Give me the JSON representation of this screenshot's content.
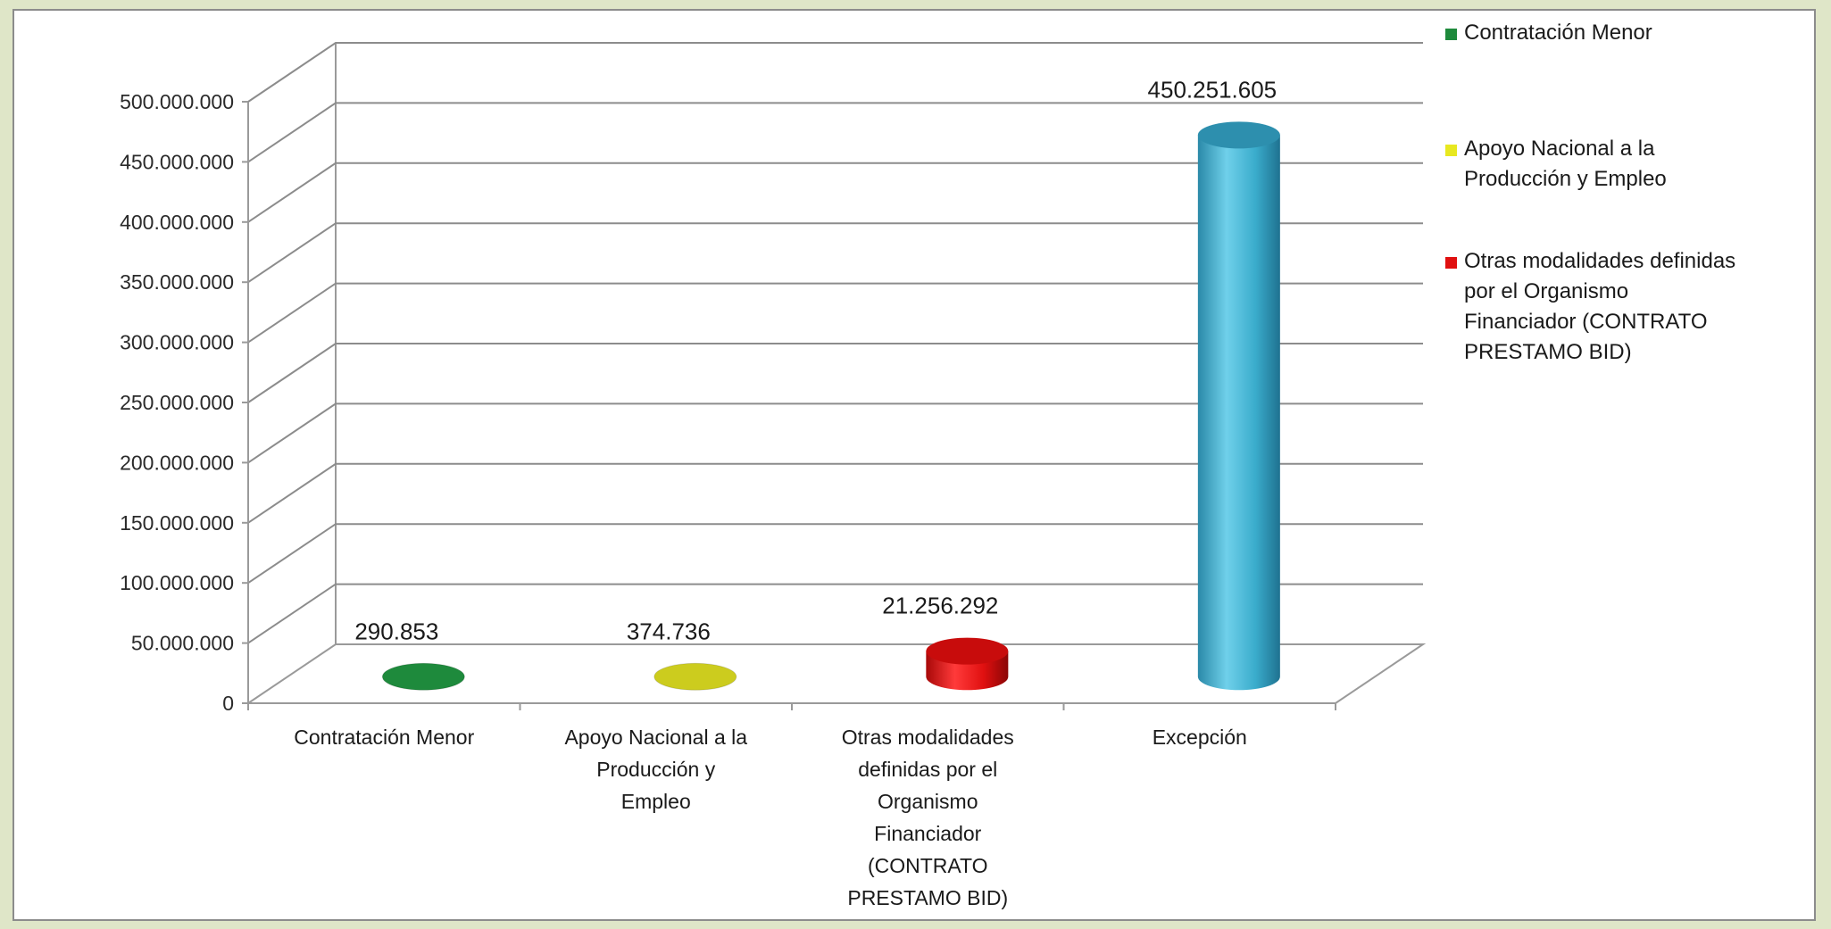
{
  "chart_data": {
    "type": "bar",
    "title": "",
    "xlabel": "",
    "ylabel": "",
    "ylim": [
      0,
      500000000
    ],
    "yticks": [
      0,
      50000000,
      100000000,
      150000000,
      200000000,
      250000000,
      300000000,
      350000000,
      400000000,
      450000000,
      500000000
    ],
    "ytick_labels": [
      "0",
      "50.000.000",
      "100.000.000",
      "150.000.000",
      "200.000.000",
      "250.000.000",
      "300.000.000",
      "350.000.000",
      "400.000.000",
      "450.000.000",
      "500.000.000"
    ],
    "grid": true,
    "legend_position": "right",
    "categories": [
      {
        "lines": [
          "Contratación Menor"
        ]
      },
      {
        "lines": [
          "Apoyo Nacional a la",
          "Producción y",
          "Empleo"
        ]
      },
      {
        "lines": [
          "Otras modalidades",
          "definidas por el",
          "Organismo",
          "Financiador",
          "(CONTRATO",
          "PRESTAMO BID)"
        ]
      },
      {
        "lines": [
          "Excepción"
        ]
      }
    ],
    "series": [
      {
        "values": [
          290853,
          374736,
          21256292,
          450251605
        ],
        "data_labels": [
          "290.853",
          "374.736",
          "21.256.292",
          "450.251.605"
        ]
      }
    ],
    "bar_colors": [
      "#1e8a3c",
      "#cccc1e",
      "#e01010",
      "#3aaccc"
    ],
    "legend": [
      {
        "color": "#1e8a3c",
        "lines": [
          "Contratación Menor"
        ]
      },
      {
        "color": "#e8e820",
        "lines": [
          "Apoyo Nacional a la",
          "Producción y Empleo"
        ]
      },
      {
        "color": "#e01010",
        "lines": [
          "Otras modalidades definidas",
          "por el Organismo",
          "Financiador (CONTRATO",
          "PRESTAMO BID)"
        ]
      }
    ]
  }
}
